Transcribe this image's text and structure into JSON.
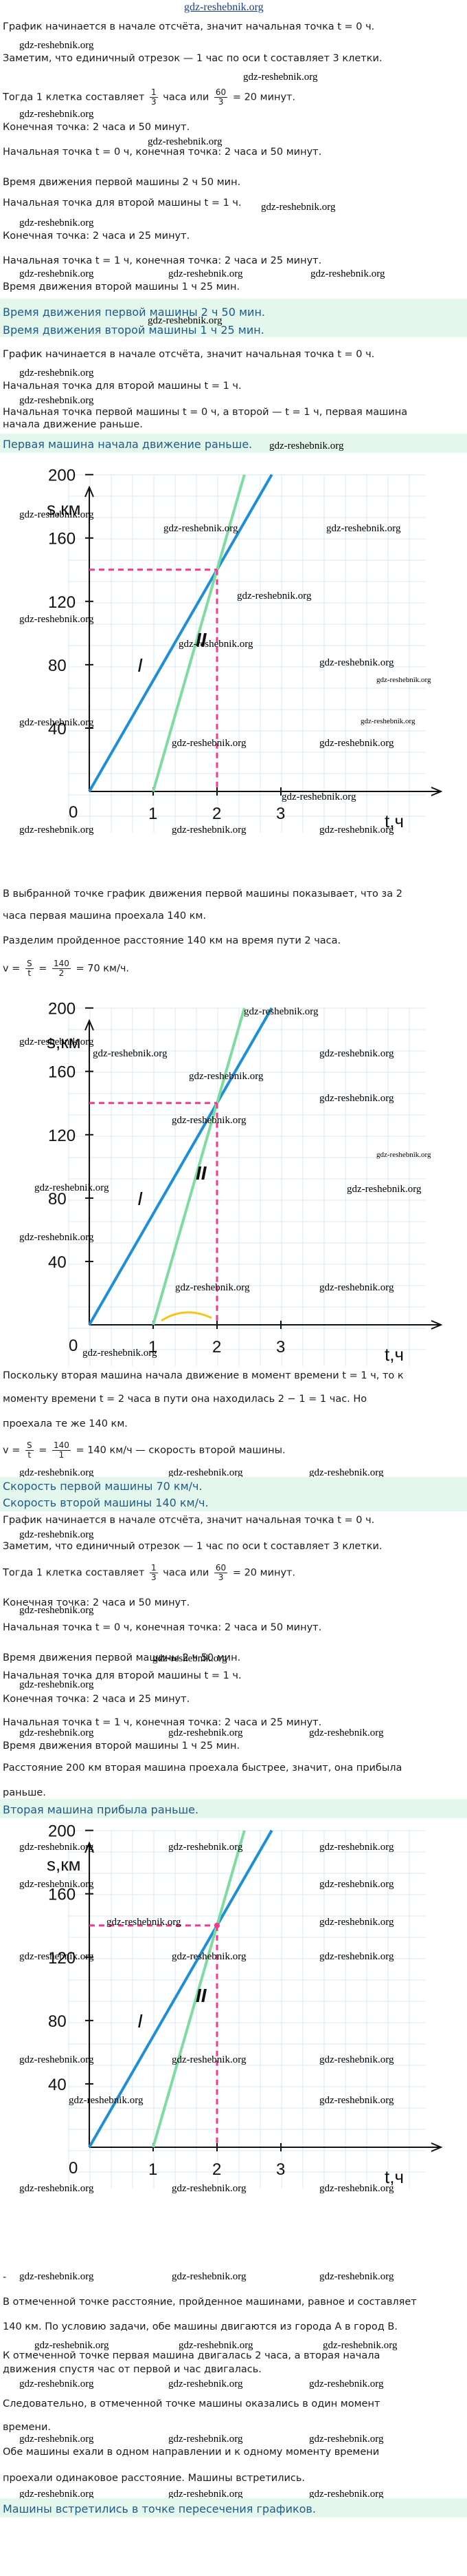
{
  "site": "gdz-reshebnik.org",
  "part1": {
    "l1": "График начинается в начале отсчёта, значит начальная точка t = 0 ч.",
    "l2": "Заметим, что единичный отрезок — 1 час по оси t составляет 3 клетки.",
    "l3a": "Тогда 1 клетка составляет",
    "l3b": "часа или",
    "l3c": "= 20 минут.",
    "f1n": "1",
    "f1d": "3",
    "f2n": "60",
    "f2d": "3",
    "l4": "Конечная точка: 2 часа и 50 минут.",
    "l5": "Начальная точка t = 0 ч, конечная точка: 2 часа и 50 минут.",
    "l6": "Время движения первой машины 2 ч 50 мин.",
    "l7": "Начальная точка для второй машины t = 1 ч.",
    "l8": "Конечная точка: 2 часа и 25 минут.",
    "l9": "Начальная точка t = 1 ч, конечная точка: 2 часа и 25 минут.",
    "l10": "Время движения второй машины 1 ч 25 мин.",
    "h1": "Время движения первой машины 2 ч 50 мин.",
    "h2": "Время движения второй машины 1 ч 25 мин."
  },
  "part2": {
    "l1": "График начинается в начале отсчёта, значит начальная точка t = 0 ч.",
    "l2": "Начальная точка для второй машины t = 1 ч.",
    "l3": "Начальная точка первой машины t = 0 ч, а второй — t = 1 ч, первая машина",
    "l4": "начала движение раньше.",
    "h1": "Первая машина начала движение раньше."
  },
  "graph": {
    "yunit": "s,км",
    "xunit": "t,ч",
    "yticks": [
      "200",
      "160",
      "120",
      "80",
      "40"
    ],
    "xticks": [
      "0",
      "1",
      "2",
      "3"
    ],
    "line1": "I",
    "line2": "II"
  },
  "part3": {
    "l1": "В выбранной точке график движения первой машины показывает, что за 2",
    "l2": "часа первая машина проехала 140 км.",
    "l3": "Разделим пройденное расстояние 140 км на время пути 2 часа.",
    "f_v": "v =",
    "f_sn": "S",
    "f_sd": "t",
    "f_vn": "140",
    "f_vd": "2",
    "f_res": "= 70 км/ч."
  },
  "part4": {
    "l1": "Поскольку вторая машина начала движение в момент времени t = 1 ч, то к",
    "l2": "моменту времени t = 2 часа в пути она находилась 2 − 1 = 1 час. Но",
    "l3": "проехала те же 140 км.",
    "f_v": "v =",
    "f_sn": "S",
    "f_sd": "t",
    "f_vn": "140",
    "f_vd": "1",
    "f_res": "= 140 км/ч — скорость второй машины.",
    "h1": "Скорость первой машины 70 км/ч.",
    "h2": "Скорость второй машины 140 км/ч."
  },
  "part5": {
    "l1": "График начинается в начале отсчёта, значит начальная точка t = 0 ч.",
    "l2": "Заметим, что единичный отрезок — 1 час по оси t составляет 3 клетки.",
    "l3a": "Тогда 1 клетка составляет",
    "l3b": "часа или",
    "l3c": "= 20 минут.",
    "f1n": "1",
    "f1d": "3",
    "f2n": "60",
    "f2d": "3",
    "l4": "Конечная точка: 2 часа и 50 минут.",
    "l5": "Начальная точка t = 0 ч, конечная точка: 2 часа и 50 минут.",
    "l6": "Время движения первой машины 2 ч 50 мин.",
    "l7": "Начальная точка для второй машины t = 1 ч.",
    "l8": "Конечная точка: 2 часа и 25 минут.",
    "l9": "Начальная точка t = 1 ч, конечная точка: 2 часа и 25 минут.",
    "l10": "Время движения второй машины 1 ч 25 мин.",
    "l11": "Расстояние 200 км вторая машина проехала быстрее, значит, она прибыла",
    "l12": "раньше.",
    "h1": "Вторая машина прибыла раньше."
  },
  "part6": {
    "l0": "-",
    "l1": "В отмеченной точке расстояние, пройденное машинами, равное и составляет",
    "l2": "140 км. По условию задачи, обе машины двигаются из города A в город B.",
    "l3": "К отмеченной точке первая машина двигалась 2 часа, а вторая начала",
    "l4": "движения спустя час от первой и час двигалась.",
    "l5": "Следовательно, в отмеченной точке машины оказались в один момент",
    "l6": "времени.",
    "l7": "Обе машины ехали в одном направлении и к одному моменту времени",
    "l8": "проехали одинаковое расстояние. Машины встретились.",
    "h1": "Машины встретились в точке пересечения графиков."
  }
}
